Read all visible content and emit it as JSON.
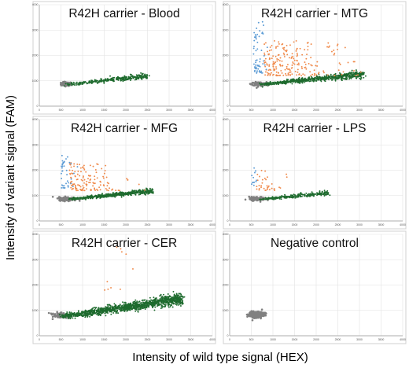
{
  "figure": {
    "ylabel": "Intensity of variant signal (FAM)",
    "xlabel": "Intensity of wild type signal (HEX)"
  },
  "colors": {
    "negative": "#808080",
    "wildtype": "#1e6b2e",
    "heterozygous": "#f08a4b",
    "variant": "#5b9bd5",
    "grid": "#e2e2e2",
    "frame": "#d0d0d0"
  },
  "chart_data": [
    {
      "type": "scatter",
      "title": "R42H carrier - Blood",
      "xlim": [
        0,
        4000
      ],
      "ylim": [
        0,
        4000
      ],
      "xticks": [
        0,
        500,
        1000,
        1500,
        2000,
        2500,
        3000,
        3500,
        4000
      ],
      "yticks": [
        0,
        1000,
        2000,
        3000,
        4000
      ],
      "clusters": [
        {
          "name": "negative",
          "color": "#808080",
          "n": 120,
          "x": [
            500,
            750
          ],
          "y": [
            800,
            950
          ],
          "style": "blob"
        },
        {
          "name": "wildtype",
          "color": "#1e6b2e",
          "n": 320,
          "x": [
            600,
            2500
          ],
          "y": [
            850,
            1300
          ],
          "style": "band"
        }
      ]
    },
    {
      "type": "scatter",
      "title": "R42H carrier - MTG",
      "xlim": [
        0,
        4000
      ],
      "ylim": [
        0,
        4000
      ],
      "xticks": [
        0,
        500,
        1000,
        1500,
        2000,
        2500,
        3000,
        3500,
        4000
      ],
      "yticks": [
        0,
        1000,
        2000,
        3000,
        4000
      ],
      "clusters": [
        {
          "name": "negative",
          "color": "#808080",
          "n": 140,
          "x": [
            500,
            850
          ],
          "y": [
            800,
            950
          ],
          "style": "blob"
        },
        {
          "name": "wildtype",
          "color": "#1e6b2e",
          "n": 700,
          "x": [
            700,
            3100
          ],
          "y": [
            850,
            1400
          ],
          "style": "band"
        },
        {
          "name": "heterozygous",
          "color": "#f08a4b",
          "n": 220,
          "x": [
            800,
            2700
          ],
          "y": [
            1200,
            2600
          ],
          "style": "cloud"
        },
        {
          "name": "variant",
          "color": "#5b9bd5",
          "n": 60,
          "x": [
            550,
            850
          ],
          "y": [
            1300,
            3400
          ],
          "style": "cloud"
        }
      ]
    },
    {
      "type": "scatter",
      "title": "R42H carrier - MFG",
      "xlim": [
        0,
        4000
      ],
      "ylim": [
        0,
        4000
      ],
      "xticks": [
        0,
        500,
        1000,
        1500,
        2000,
        2500,
        3000,
        3500,
        4000
      ],
      "yticks": [
        0,
        1000,
        2000,
        3000,
        4000
      ],
      "clusters": [
        {
          "name": "negative",
          "color": "#808080",
          "n": 140,
          "x": [
            450,
            850
          ],
          "y": [
            800,
            950
          ],
          "style": "blob"
        },
        {
          "name": "wildtype",
          "color": "#1e6b2e",
          "n": 500,
          "x": [
            700,
            2600
          ],
          "y": [
            850,
            1300
          ],
          "style": "band"
        },
        {
          "name": "heterozygous",
          "color": "#f08a4b",
          "n": 140,
          "x": [
            700,
            1900
          ],
          "y": [
            1200,
            2300
          ],
          "style": "cloud"
        },
        {
          "name": "variant",
          "color": "#5b9bd5",
          "n": 40,
          "x": [
            500,
            850
          ],
          "y": [
            1300,
            2600
          ],
          "style": "cloud"
        }
      ]
    },
    {
      "type": "scatter",
      "title": "R42H carrier - LPS",
      "xlim": [
        0,
        4000
      ],
      "ylim": [
        0,
        4000
      ],
      "xticks": [
        0,
        500,
        1000,
        1500,
        2000,
        2500,
        3000,
        3500,
        4000
      ],
      "yticks": [
        0,
        1000,
        2000,
        3000,
        4000
      ],
      "clusters": [
        {
          "name": "negative",
          "color": "#808080",
          "n": 120,
          "x": [
            450,
            850
          ],
          "y": [
            800,
            950
          ],
          "style": "blob"
        },
        {
          "name": "wildtype",
          "color": "#1e6b2e",
          "n": 260,
          "x": [
            700,
            2300
          ],
          "y": [
            850,
            1200
          ],
          "style": "band"
        },
        {
          "name": "heterozygous",
          "color": "#f08a4b",
          "n": 35,
          "x": [
            600,
            1300
          ],
          "y": [
            1200,
            2000
          ],
          "style": "cloud"
        },
        {
          "name": "variant",
          "color": "#5b9bd5",
          "n": 12,
          "x": [
            500,
            800
          ],
          "y": [
            1400,
            2100
          ],
          "style": "cloud"
        }
      ]
    },
    {
      "type": "scatter",
      "title": "R42H carrier - CER",
      "xlim": [
        0,
        4000
      ],
      "ylim": [
        0,
        4000
      ],
      "xticks": [
        0,
        500,
        1000,
        1500,
        2000,
        2500,
        3000,
        3500,
        4000
      ],
      "yticks": [
        0,
        1000,
        2000,
        3000,
        4000
      ],
      "clusters": [
        {
          "name": "negative",
          "color": "#808080",
          "n": 90,
          "x": [
            300,
            650
          ],
          "y": [
            700,
            900
          ],
          "style": "blob"
        },
        {
          "name": "wildtype",
          "color": "#1e6b2e",
          "n": 1300,
          "x": [
            500,
            3300
          ],
          "y": [
            750,
            1700
          ],
          "style": "band"
        },
        {
          "name": "heterozygous",
          "color": "#f08a4b",
          "n": 10,
          "x": [
            1500,
            2600
          ],
          "y": [
            1800,
            3500
          ],
          "style": "cloud"
        }
      ]
    },
    {
      "type": "scatter",
      "title": "Negative control",
      "xlim": [
        0,
        4000
      ],
      "ylim": [
        0,
        4000
      ],
      "xticks": [
        0,
        500,
        1000,
        1500,
        2000,
        2500,
        3000,
        3500,
        4000
      ],
      "yticks": [
        0,
        1000,
        2000,
        3000,
        4000
      ],
      "clusters": [
        {
          "name": "negative",
          "color": "#808080",
          "n": 260,
          "x": [
            450,
            800
          ],
          "y": [
            700,
            950
          ],
          "style": "blob"
        }
      ]
    }
  ]
}
